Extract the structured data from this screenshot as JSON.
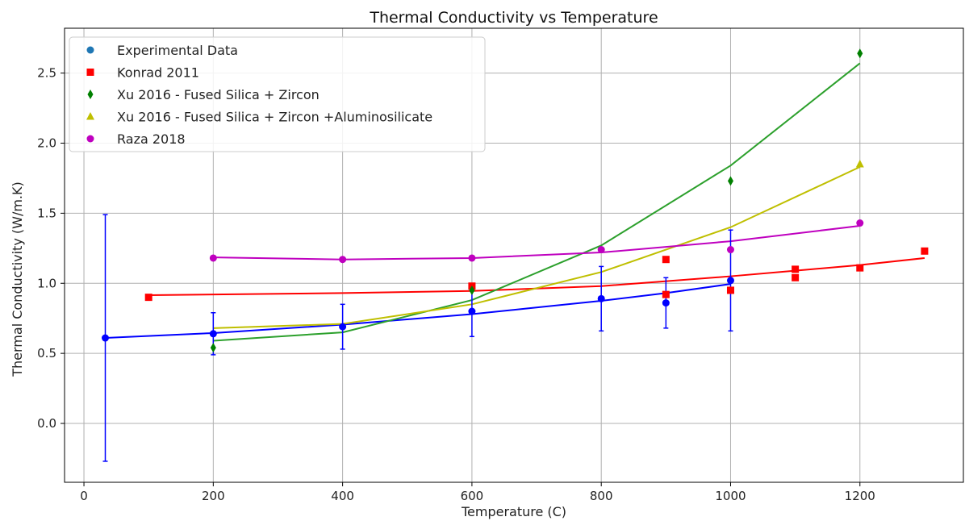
{
  "chart_data": {
    "type": "scatter",
    "title": "Thermal Conductivity vs Temperature",
    "xlabel": "Temperature (C)",
    "ylabel": "Thermal Conductivity (W/m.K)",
    "xlim": [
      -30,
      1360
    ],
    "ylim": [
      -0.42,
      2.82
    ],
    "xticks": [
      0,
      200,
      400,
      600,
      800,
      1000,
      1200
    ],
    "yticks": [
      0.0,
      0.5,
      1.0,
      1.5,
      2.0,
      2.5
    ],
    "xtick_labels": [
      "0",
      "200",
      "400",
      "600",
      "800",
      "1000",
      "1200"
    ],
    "ytick_labels": [
      "0.0",
      "0.5",
      "1.0",
      "1.5",
      "2.0",
      "2.5"
    ],
    "grid": true,
    "legend_position": "top-left",
    "series": [
      {
        "name": "Experimental Data",
        "color": "#1f77b4",
        "marker": "circle",
        "points": [
          {
            "x": 33,
            "y": 0.61,
            "err": 0.88
          },
          {
            "x": 200,
            "y": 0.64,
            "err": 0.15
          },
          {
            "x": 400,
            "y": 0.69,
            "err": 0.16
          },
          {
            "x": 600,
            "y": 0.8,
            "err": 0.18
          },
          {
            "x": 800,
            "y": 0.89,
            "err": 0.23
          },
          {
            "x": 900,
            "y": 0.86,
            "err": 0.18
          },
          {
            "x": 1000,
            "y": 1.02,
            "err": 0.36
          }
        ],
        "point_color": "#0000ff",
        "errorbar_color": "#0000ff",
        "fit": {
          "color": "#0000ff",
          "x": [
            33,
            200,
            400,
            600,
            800,
            900,
            1000
          ],
          "y": [
            0.61,
            0.645,
            0.705,
            0.78,
            0.875,
            0.93,
            0.995
          ]
        }
      },
      {
        "name": "Konrad 2011",
        "color": "#ff0000",
        "marker": "square",
        "points": [
          {
            "x": 100,
            "y": 0.9
          },
          {
            "x": 600,
            "y": 0.98
          },
          {
            "x": 900,
            "y": 1.17
          },
          {
            "x": 900,
            "y": 0.92
          },
          {
            "x": 1000,
            "y": 0.95
          },
          {
            "x": 1100,
            "y": 1.1
          },
          {
            "x": 1100,
            "y": 1.04
          },
          {
            "x": 1200,
            "y": 1.11
          },
          {
            "x": 1300,
            "y": 1.23
          }
        ],
        "fit": {
          "color": "#ff0000",
          "x": [
            100,
            400,
            600,
            800,
            1000,
            1100,
            1200,
            1300
          ],
          "y": [
            0.915,
            0.93,
            0.945,
            0.98,
            1.05,
            1.09,
            1.13,
            1.18
          ]
        }
      },
      {
        "name": "Xu 2016 - Fused Silica + Zircon",
        "color": "#008000",
        "marker": "diamond",
        "points": [
          {
            "x": 200,
            "y": 0.54
          },
          {
            "x": 600,
            "y": 0.95
          },
          {
            "x": 1000,
            "y": 1.73
          },
          {
            "x": 1200,
            "y": 2.64
          }
        ],
        "fit": {
          "color": "#2ca02c",
          "x": [
            200,
            400,
            600,
            800,
            1000,
            1200
          ],
          "y": [
            0.59,
            0.65,
            0.88,
            1.27,
            1.84,
            2.57
          ]
        }
      },
      {
        "name": "Xu 2016 - Fused Silica + Zircon +Aluminosilicate",
        "color": "#bfbf00",
        "marker": "triangle",
        "points": [
          {
            "x": 1200,
            "y": 1.85
          }
        ],
        "fit": {
          "color": "#bfbf00",
          "x": [
            200,
            400,
            600,
            800,
            1000,
            1200
          ],
          "y": [
            0.68,
            0.71,
            0.85,
            1.08,
            1.4,
            1.83
          ]
        }
      },
      {
        "name": "Raza 2018",
        "color": "#bf00bf",
        "marker": "circle",
        "points": [
          {
            "x": 200,
            "y": 1.18
          },
          {
            "x": 400,
            "y": 1.17
          },
          {
            "x": 600,
            "y": 1.18
          },
          {
            "x": 800,
            "y": 1.24
          },
          {
            "x": 1000,
            "y": 1.24
          },
          {
            "x": 1200,
            "y": 1.43
          }
        ],
        "fit": {
          "color": "#bf00bf",
          "x": [
            200,
            400,
            600,
            800,
            1000,
            1200
          ],
          "y": [
            1.185,
            1.17,
            1.18,
            1.22,
            1.3,
            1.41
          ]
        }
      }
    ]
  }
}
